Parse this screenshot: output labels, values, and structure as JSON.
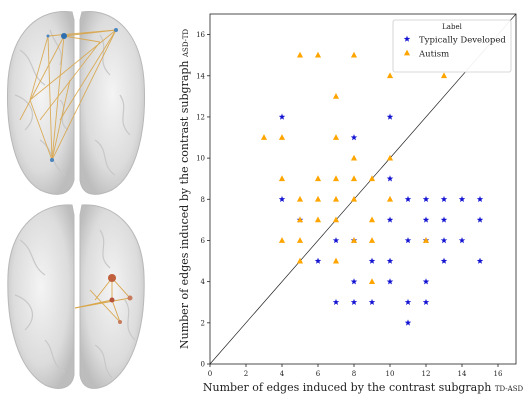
{
  "chart_data": {
    "type": "scatter",
    "xlabel": "Number of edges induced by the contrast subgraph",
    "xlabel_sub": "TD-ASD",
    "ylabel": "Number of edges induced by the contrast subgraph",
    "ylabel_sub": "ASD-TD",
    "xlim": [
      0,
      17
    ],
    "ylim": [
      0,
      17
    ],
    "xticks": [
      "0",
      "2",
      "4",
      "6",
      "8",
      "10",
      "12",
      "14",
      "16"
    ],
    "yticks": [
      "0",
      "2",
      "4",
      "6",
      "8",
      "10",
      "12",
      "14",
      "16"
    ],
    "diagonal_line": true,
    "legend": {
      "title": "Label",
      "placement": "top-right"
    },
    "series": [
      {
        "name": "Typically Developed",
        "marker": "star",
        "color": "#1414d2",
        "points": [
          [
            4,
            12
          ],
          [
            4,
            8
          ],
          [
            8,
            11
          ],
          [
            10,
            12
          ],
          [
            10,
            9
          ],
          [
            5,
            7
          ],
          [
            6,
            5
          ],
          [
            7,
            6
          ],
          [
            7,
            3
          ],
          [
            8,
            6
          ],
          [
            8,
            4
          ],
          [
            8,
            3
          ],
          [
            9,
            5
          ],
          [
            9,
            3
          ],
          [
            10,
            7
          ],
          [
            10,
            5
          ],
          [
            10,
            4
          ],
          [
            11,
            8
          ],
          [
            11,
            6
          ],
          [
            11,
            3
          ],
          [
            11,
            2
          ],
          [
            12,
            8
          ],
          [
            12,
            7
          ],
          [
            12,
            6
          ],
          [
            12,
            4
          ],
          [
            12,
            3
          ],
          [
            13,
            8
          ],
          [
            13,
            7
          ],
          [
            13,
            6
          ],
          [
            13,
            5
          ],
          [
            14,
            8
          ],
          [
            14,
            6
          ],
          [
            15,
            8
          ],
          [
            15,
            7
          ],
          [
            15,
            5
          ]
        ]
      },
      {
        "name": "Autism",
        "marker": "triangle",
        "color": "#ffa500",
        "points": [
          [
            5,
            15
          ],
          [
            6,
            15
          ],
          [
            8,
            15
          ],
          [
            10,
            14
          ],
          [
            13,
            14
          ],
          [
            7,
            13
          ],
          [
            3,
            11
          ],
          [
            4,
            11
          ],
          [
            7,
            11
          ],
          [
            8,
            10
          ],
          [
            10,
            10
          ],
          [
            4,
            9
          ],
          [
            6,
            9
          ],
          [
            7,
            9
          ],
          [
            8,
            9
          ],
          [
            9,
            9
          ],
          [
            5,
            8
          ],
          [
            6,
            8
          ],
          [
            7,
            8
          ],
          [
            8,
            8
          ],
          [
            10,
            8
          ],
          [
            5,
            7
          ],
          [
            6,
            7
          ],
          [
            7,
            7
          ],
          [
            9,
            7
          ],
          [
            4,
            6
          ],
          [
            5,
            6
          ],
          [
            8,
            6
          ],
          [
            9,
            6
          ],
          [
            12,
            6
          ],
          [
            5,
            5
          ],
          [
            7,
            5
          ],
          [
            9,
            4
          ]
        ]
      }
    ]
  }
}
